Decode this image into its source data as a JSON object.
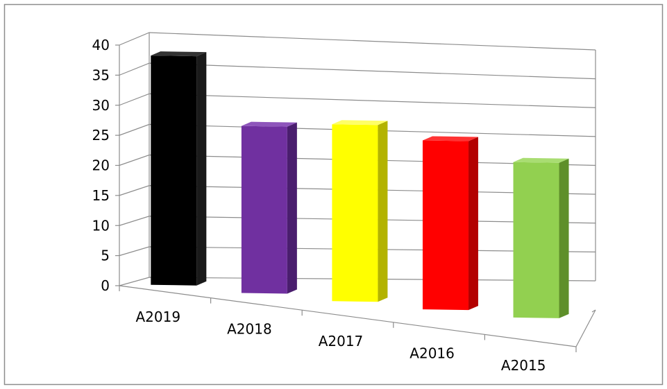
{
  "chart_data": {
    "type": "bar",
    "style": "3d-column",
    "categories": [
      "A2019",
      "A2018",
      "A2017",
      "A2016",
      "A2015"
    ],
    "values": [
      38,
      28,
      30,
      29,
      27
    ],
    "colors": [
      "#000000",
      "#7030a0",
      "#ffff00",
      "#ff0000",
      "#92d050"
    ],
    "side_colors": [
      "#1a1a1a",
      "#4a1e6e",
      "#b3b300",
      "#b30000",
      "#5e8f2a"
    ],
    "top_colors": [
      "#333333",
      "#8e55bb",
      "#ffff66",
      "#ff3333",
      "#a9dd72"
    ],
    "ylim": [
      0,
      40
    ],
    "y_ticks": [
      "0",
      "5",
      "10",
      "15",
      "20",
      "25",
      "30",
      "35",
      "40"
    ],
    "grid": true,
    "legend": "none"
  }
}
